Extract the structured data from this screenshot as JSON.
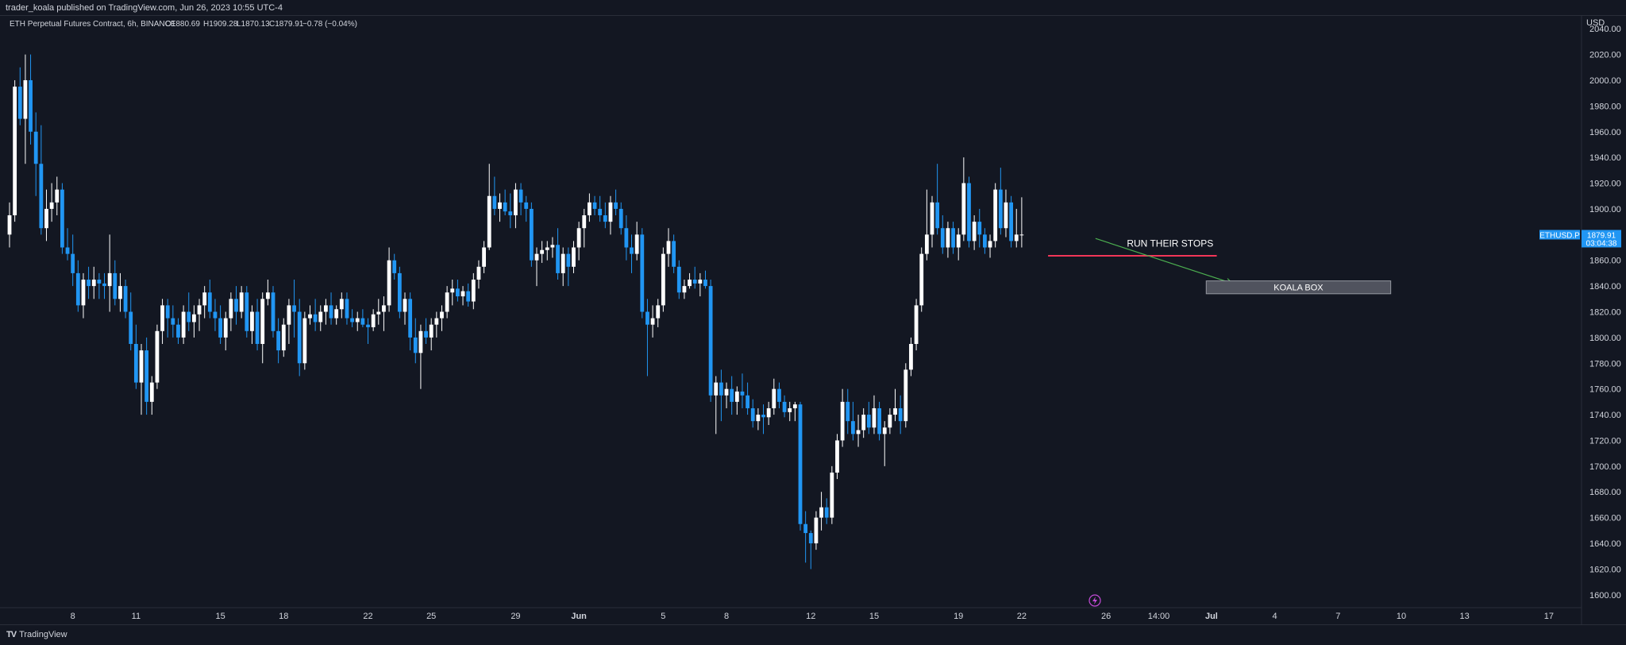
{
  "header": {
    "publisher": "trader_koala published on TradingView.com, Jun 26, 2023 10:55 UTC-4"
  },
  "footer": {
    "brand": "TradingView"
  },
  "colors": {
    "background": "#131722",
    "bull": "#ffffff",
    "bear": "#2196f3",
    "level_line": "#f23658",
    "arrow": "#4caf50",
    "box_fill": "#50535e",
    "price_tag": "#2196f3"
  },
  "chart_data": {
    "type": "candlestick",
    "symbol_line": "ETH Perpetual Futures Contract, 6h, BINANCE",
    "ohlc": {
      "open": "O1880.69",
      "high": "H1909.28",
      "low": "L1870.13",
      "close": "C1879.91",
      "change": "−0.78 (−0.04%)"
    },
    "currency_label": "USD",
    "y_ticks": [
      "2040.00",
      "2020.00",
      "2000.00",
      "1980.00",
      "1960.00",
      "1940.00",
      "1920.00",
      "1900.00",
      "1880.00",
      "1860.00",
      "1840.00",
      "1820.00",
      "1800.00",
      "1780.00",
      "1760.00",
      "1740.00",
      "1720.00",
      "1700.00",
      "1680.00",
      "1660.00",
      "1640.00",
      "1620.00",
      "1600.00"
    ],
    "y_range": [
      1590,
      2050
    ],
    "x_ticks": [
      {
        "label": "8",
        "i": 12
      },
      {
        "label": "11",
        "i": 24
      },
      {
        "label": "15",
        "i": 40
      },
      {
        "label": "18",
        "i": 52
      },
      {
        "label": "22",
        "i": 68
      },
      {
        "label": "25",
        "i": 80
      },
      {
        "label": "29",
        "i": 96
      },
      {
        "label": "Jun",
        "i": 108
      },
      {
        "label": "5",
        "i": 124
      },
      {
        "label": "8",
        "i": 136
      },
      {
        "label": "12",
        "i": 152
      },
      {
        "label": "15",
        "i": 164
      },
      {
        "label": "19",
        "i": 180
      },
      {
        "label": "22",
        "i": 192
      },
      {
        "label": "26",
        "i": 208
      },
      {
        "label": "14:00",
        "i": 218
      },
      {
        "label": "Jul",
        "i": 228
      },
      {
        "label": "4",
        "i": 240
      },
      {
        "label": "7",
        "i": 252
      },
      {
        "label": "10",
        "i": 264
      },
      {
        "label": "13",
        "i": 276
      },
      {
        "label": "17",
        "i": 292
      }
    ],
    "bars": [
      [
        1880,
        1905,
        1870,
        1895
      ],
      [
        1895,
        2000,
        1890,
        1995
      ],
      [
        1995,
        2010,
        1965,
        1970
      ],
      [
        1970,
        2020,
        1935,
        2000
      ],
      [
        2000,
        2020,
        1950,
        1960
      ],
      [
        1960,
        1975,
        1910,
        1935
      ],
      [
        1935,
        1965,
        1880,
        1885
      ],
      [
        1885,
        1915,
        1875,
        1900
      ],
      [
        1900,
        1920,
        1890,
        1905
      ],
      [
        1905,
        1925,
        1895,
        1915
      ],
      [
        1915,
        1920,
        1865,
        1870
      ],
      [
        1870,
        1885,
        1860,
        1865
      ],
      [
        1865,
        1880,
        1840,
        1850
      ],
      [
        1850,
        1860,
        1820,
        1825
      ],
      [
        1825,
        1850,
        1815,
        1845
      ],
      [
        1845,
        1855,
        1830,
        1840
      ],
      [
        1840,
        1855,
        1830,
        1845
      ],
      [
        1845,
        1850,
        1830,
        1842
      ],
      [
        1842,
        1850,
        1830,
        1840
      ],
      [
        1840,
        1880,
        1820,
        1850
      ],
      [
        1850,
        1860,
        1825,
        1830
      ],
      [
        1830,
        1850,
        1820,
        1840
      ],
      [
        1840,
        1845,
        1815,
        1820
      ],
      [
        1820,
        1835,
        1790,
        1795
      ],
      [
        1795,
        1810,
        1760,
        1765
      ],
      [
        1765,
        1795,
        1740,
        1790
      ],
      [
        1790,
        1800,
        1740,
        1750
      ],
      [
        1750,
        1770,
        1740,
        1765
      ],
      [
        1765,
        1810,
        1760,
        1805
      ],
      [
        1805,
        1830,
        1795,
        1825
      ],
      [
        1825,
        1830,
        1800,
        1815
      ],
      [
        1815,
        1825,
        1800,
        1810
      ],
      [
        1810,
        1815,
        1795,
        1800
      ],
      [
        1800,
        1825,
        1795,
        1820
      ],
      [
        1820,
        1835,
        1805,
        1812
      ],
      [
        1812,
        1825,
        1800,
        1818
      ],
      [
        1818,
        1830,
        1805,
        1825
      ],
      [
        1825,
        1840,
        1815,
        1835
      ],
      [
        1835,
        1845,
        1815,
        1820
      ],
      [
        1820,
        1830,
        1805,
        1815
      ],
      [
        1815,
        1825,
        1795,
        1800
      ],
      [
        1800,
        1820,
        1790,
        1815
      ],
      [
        1815,
        1835,
        1805,
        1830
      ],
      [
        1830,
        1840,
        1810,
        1820
      ],
      [
        1820,
        1840,
        1815,
        1835
      ],
      [
        1835,
        1840,
        1800,
        1805
      ],
      [
        1805,
        1825,
        1795,
        1820
      ],
      [
        1820,
        1830,
        1790,
        1795
      ],
      [
        1795,
        1835,
        1780,
        1830
      ],
      [
        1830,
        1845,
        1825,
        1835
      ],
      [
        1835,
        1840,
        1800,
        1805
      ],
      [
        1805,
        1815,
        1780,
        1790
      ],
      [
        1790,
        1815,
        1785,
        1810
      ],
      [
        1810,
        1830,
        1795,
        1825
      ],
      [
        1825,
        1845,
        1800,
        1820
      ],
      [
        1820,
        1830,
        1770,
        1780
      ],
      [
        1780,
        1820,
        1775,
        1815
      ],
      [
        1815,
        1825,
        1810,
        1818
      ],
      [
        1818,
        1830,
        1805,
        1812
      ],
      [
        1812,
        1825,
        1805,
        1820
      ],
      [
        1820,
        1830,
        1810,
        1825
      ],
      [
        1825,
        1835,
        1810,
        1815
      ],
      [
        1815,
        1825,
        1810,
        1822
      ],
      [
        1822,
        1835,
        1815,
        1830
      ],
      [
        1830,
        1835,
        1810,
        1815
      ],
      [
        1815,
        1822,
        1808,
        1812
      ],
      [
        1812,
        1820,
        1805,
        1815
      ],
      [
        1815,
        1822,
        1808,
        1810
      ],
      [
        1810,
        1815,
        1795,
        1808
      ],
      [
        1808,
        1822,
        1805,
        1818
      ],
      [
        1818,
        1830,
        1810,
        1820
      ],
      [
        1820,
        1832,
        1805,
        1825
      ],
      [
        1825,
        1870,
        1820,
        1860
      ],
      [
        1860,
        1865,
        1845,
        1850
      ],
      [
        1850,
        1855,
        1815,
        1820
      ],
      [
        1820,
        1835,
        1810,
        1830
      ],
      [
        1830,
        1835,
        1790,
        1800
      ],
      [
        1800,
        1815,
        1780,
        1788
      ],
      [
        1788,
        1810,
        1760,
        1805
      ],
      [
        1805,
        1815,
        1795,
        1800
      ],
      [
        1800,
        1815,
        1790,
        1810
      ],
      [
        1810,
        1820,
        1800,
        1815
      ],
      [
        1815,
        1825,
        1805,
        1820
      ],
      [
        1820,
        1840,
        1815,
        1835
      ],
      [
        1835,
        1845,
        1825,
        1838
      ],
      [
        1838,
        1845,
        1828,
        1832
      ],
      [
        1832,
        1840,
        1825,
        1836
      ],
      [
        1836,
        1842,
        1824,
        1828
      ],
      [
        1828,
        1850,
        1822,
        1845
      ],
      [
        1845,
        1860,
        1838,
        1855
      ],
      [
        1855,
        1875,
        1850,
        1870
      ],
      [
        1870,
        1935,
        1868,
        1910
      ],
      [
        1910,
        1925,
        1895,
        1900
      ],
      [
        1900,
        1912,
        1890,
        1905
      ],
      [
        1905,
        1915,
        1895,
        1898
      ],
      [
        1898,
        1912,
        1885,
        1895
      ],
      [
        1895,
        1920,
        1885,
        1915
      ],
      [
        1915,
        1920,
        1895,
        1905
      ],
      [
        1905,
        1910,
        1890,
        1900
      ],
      [
        1900,
        1905,
        1855,
        1860
      ],
      [
        1860,
        1870,
        1840,
        1865
      ],
      [
        1865,
        1875,
        1858,
        1868
      ],
      [
        1868,
        1875,
        1860,
        1870
      ],
      [
        1870,
        1878,
        1862,
        1872
      ],
      [
        1872,
        1885,
        1845,
        1850
      ],
      [
        1850,
        1870,
        1840,
        1865
      ],
      [
        1865,
        1870,
        1840,
        1855
      ],
      [
        1855,
        1875,
        1850,
        1870
      ],
      [
        1870,
        1890,
        1860,
        1885
      ],
      [
        1885,
        1900,
        1870,
        1895
      ],
      [
        1895,
        1912,
        1890,
        1905
      ],
      [
        1905,
        1910,
        1895,
        1900
      ],
      [
        1900,
        1910,
        1890,
        1895
      ],
      [
        1895,
        1905,
        1885,
        1890
      ],
      [
        1890,
        1910,
        1880,
        1905
      ],
      [
        1905,
        1915,
        1895,
        1900
      ],
      [
        1900,
        1905,
        1880,
        1885
      ],
      [
        1885,
        1895,
        1860,
        1870
      ],
      [
        1870,
        1880,
        1850,
        1865
      ],
      [
        1865,
        1890,
        1860,
        1880
      ],
      [
        1880,
        1885,
        1815,
        1820
      ],
      [
        1820,
        1830,
        1770,
        1810
      ],
      [
        1810,
        1825,
        1800,
        1815
      ],
      [
        1815,
        1830,
        1808,
        1825
      ],
      [
        1825,
        1870,
        1820,
        1865
      ],
      [
        1865,
        1885,
        1855,
        1875
      ],
      [
        1875,
        1880,
        1850,
        1855
      ],
      [
        1855,
        1860,
        1830,
        1835
      ],
      [
        1835,
        1845,
        1830,
        1840
      ],
      [
        1840,
        1850,
        1838,
        1845
      ],
      [
        1845,
        1855,
        1838,
        1842
      ],
      [
        1842,
        1850,
        1832,
        1845
      ],
      [
        1845,
        1852,
        1838,
        1840
      ],
      [
        1840,
        1845,
        1750,
        1755
      ],
      [
        1755,
        1770,
        1725,
        1765
      ],
      [
        1765,
        1775,
        1735,
        1755
      ],
      [
        1755,
        1765,
        1745,
        1760
      ],
      [
        1760,
        1770,
        1740,
        1750
      ],
      [
        1750,
        1762,
        1740,
        1758
      ],
      [
        1758,
        1772,
        1745,
        1755
      ],
      [
        1755,
        1765,
        1740,
        1745
      ],
      [
        1745,
        1752,
        1730,
        1735
      ],
      [
        1735,
        1745,
        1728,
        1740
      ],
      [
        1740,
        1748,
        1725,
        1738
      ],
      [
        1738,
        1750,
        1732,
        1745
      ],
      [
        1745,
        1768,
        1740,
        1760
      ],
      [
        1760,
        1765,
        1745,
        1750
      ],
      [
        1750,
        1755,
        1738,
        1742
      ],
      [
        1742,
        1750,
        1735,
        1745
      ],
      [
        1745,
        1750,
        1735,
        1748
      ],
      [
        1748,
        1750,
        1650,
        1655
      ],
      [
        1655,
        1665,
        1625,
        1648
      ],
      [
        1648,
        1650,
        1620,
        1640
      ],
      [
        1640,
        1665,
        1635,
        1660
      ],
      [
        1660,
        1680,
        1650,
        1668
      ],
      [
        1668,
        1675,
        1655,
        1660
      ],
      [
        1660,
        1700,
        1655,
        1695
      ],
      [
        1695,
        1725,
        1690,
        1720
      ],
      [
        1720,
        1760,
        1715,
        1750
      ],
      [
        1750,
        1760,
        1725,
        1735
      ],
      [
        1735,
        1750,
        1720,
        1725
      ],
      [
        1725,
        1740,
        1715,
        1728
      ],
      [
        1728,
        1745,
        1722,
        1740
      ],
      [
        1740,
        1750,
        1725,
        1730
      ],
      [
        1730,
        1755,
        1725,
        1745
      ],
      [
        1745,
        1750,
        1720,
        1725
      ],
      [
        1725,
        1735,
        1700,
        1730
      ],
      [
        1730,
        1745,
        1725,
        1740
      ],
      [
        1740,
        1760,
        1735,
        1745
      ],
      [
        1745,
        1755,
        1725,
        1735
      ],
      [
        1735,
        1780,
        1730,
        1775
      ],
      [
        1775,
        1800,
        1770,
        1795
      ],
      [
        1795,
        1830,
        1790,
        1825
      ],
      [
        1825,
        1870,
        1820,
        1865
      ],
      [
        1865,
        1915,
        1860,
        1880
      ],
      [
        1880,
        1910,
        1870,
        1905
      ],
      [
        1905,
        1935,
        1880,
        1885
      ],
      [
        1885,
        1895,
        1865,
        1870
      ],
      [
        1870,
        1890,
        1862,
        1885
      ],
      [
        1885,
        1890,
        1865,
        1870
      ],
      [
        1870,
        1885,
        1860,
        1880
      ],
      [
        1880,
        1940,
        1875,
        1920
      ],
      [
        1920,
        1925,
        1870,
        1875
      ],
      [
        1875,
        1895,
        1868,
        1890
      ],
      [
        1890,
        1900,
        1870,
        1880
      ],
      [
        1880,
        1885,
        1865,
        1870
      ],
      [
        1870,
        1880,
        1862,
        1875
      ],
      [
        1875,
        1920,
        1870,
        1915
      ],
      [
        1915,
        1932,
        1880,
        1885
      ],
      [
        1885,
        1915,
        1878,
        1905
      ],
      [
        1905,
        1910,
        1870,
        1875
      ],
      [
        1875,
        1900,
        1870,
        1880
      ],
      [
        1880,
        1909,
        1870,
        1880
      ]
    ],
    "annotations": [
      {
        "type": "hline",
        "price": 1863.5,
        "from": 197,
        "to": 229
      },
      {
        "type": "text",
        "label": "RUN THEIR STOPS",
        "price": 1870.5,
        "at": 220
      },
      {
        "type": "arrow",
        "from": [
          206,
          1877
        ],
        "to": [
          232,
          1842
        ]
      },
      {
        "type": "box",
        "label": "KOALA BOX",
        "price_top": 1844,
        "price_bottom": 1834,
        "from": 227,
        "to": 262
      }
    ],
    "last_price": {
      "symbol": "ETHUSD.P",
      "price": "1879.91",
      "countdown": "03:04:38",
      "value": 1879.91
    }
  }
}
